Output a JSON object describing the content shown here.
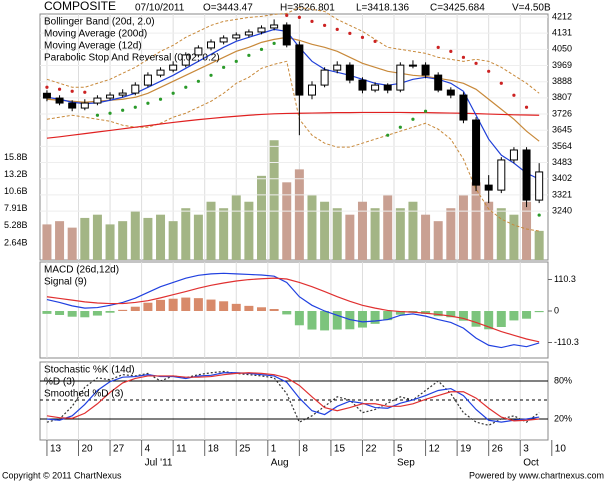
{
  "chart_data": [
    {
      "type": "candlestick",
      "title": "COMPOSITE",
      "header": [
        "07/10/2011",
        "O=3443.47",
        "H=3526.801",
        "L=3418.136",
        "C=3425.684",
        "V=4.50B"
      ],
      "x": [
        0,
        2,
        4,
        6,
        8,
        10,
        12,
        14,
        16,
        18,
        20,
        22,
        24,
        26,
        28,
        30,
        32,
        34,
        36,
        38,
        40,
        42,
        44,
        46,
        48,
        50,
        52,
        54,
        56,
        58,
        60,
        62,
        64,
        66,
        68,
        70,
        72,
        74,
        76,
        78
      ],
      "open": [
        3830,
        3806,
        3781,
        3756,
        3781,
        3806,
        3821,
        3831,
        3871,
        3921,
        3946,
        3971,
        4022,
        4057,
        4087,
        4107,
        4122,
        4137,
        4157,
        4172,
        4072,
        3821,
        3871,
        3946,
        3971,
        3896,
        3846,
        3871,
        3846,
        3971,
        3971,
        3921,
        3846,
        3821,
        3696,
        3370,
        3345,
        3496,
        3546,
        3295
      ],
      "high": [
        3845,
        3820,
        3795,
        3800,
        3820,
        3835,
        3850,
        3885,
        3935,
        3960,
        3990,
        4035,
        4070,
        4100,
        4120,
        4135,
        4150,
        4170,
        4200,
        4185,
        4090,
        3890,
        3960,
        3990,
        3985,
        3910,
        3885,
        3880,
        3985,
        3995,
        3985,
        3935,
        3860,
        3835,
        3710,
        3420,
        3510,
        3560,
        3560,
        3480
      ],
      "low": [
        3790,
        3770,
        3740,
        3745,
        3770,
        3795,
        3810,
        3820,
        3860,
        3910,
        3935,
        3960,
        4010,
        4045,
        4075,
        4095,
        4110,
        4125,
        4145,
        4060,
        3620,
        3800,
        3860,
        3930,
        3880,
        3830,
        3835,
        3830,
        3835,
        3955,
        3905,
        3835,
        3805,
        3680,
        3340,
        3280,
        3330,
        3480,
        3260,
        3280
      ],
      "close": [
        3806,
        3781,
        3756,
        3781,
        3806,
        3821,
        3831,
        3871,
        3921,
        3946,
        3971,
        4022,
        4057,
        4087,
        4107,
        4122,
        4137,
        4157,
        4172,
        4072,
        3821,
        3871,
        3946,
        3971,
        3896,
        3846,
        3871,
        3846,
        3971,
        3971,
        3921,
        3846,
        3821,
        3696,
        3370,
        3345,
        3496,
        3546,
        3295,
        3436
      ],
      "up_color": "#ffffff",
      "down_color": "#000000",
      "bollinger": {
        "name": "Bollinger Band (20d, 2.0)",
        "color": "#c8893a",
        "upper": [
          3900,
          3880,
          3860,
          3860,
          3880,
          3900,
          3930,
          3960,
          4000,
          4040,
          4070,
          4110,
          4140,
          4170,
          4190,
          4200,
          4210,
          4215,
          4225,
          4230,
          4260,
          4250,
          4240,
          4200,
          4170,
          4140,
          4100,
          4060,
          4050,
          4040,
          4030,
          4010,
          4000,
          3990,
          4000,
          3990,
          3960,
          3920,
          3880,
          3830
        ],
        "middle": [
          3800,
          3795,
          3790,
          3785,
          3790,
          3795,
          3800,
          3810,
          3830,
          3860,
          3890,
          3920,
          3950,
          3980,
          4010,
          4040,
          4060,
          4085,
          4100,
          4110,
          4095,
          4075,
          4060,
          4040,
          4010,
          3980,
          3960,
          3940,
          3930,
          3920,
          3915,
          3905,
          3895,
          3880,
          3850,
          3800,
          3750,
          3700,
          3640,
          3590
        ],
        "lower": [
          3700,
          3710,
          3720,
          3710,
          3700,
          3690,
          3670,
          3660,
          3660,
          3680,
          3710,
          3730,
          3760,
          3790,
          3830,
          3880,
          3910,
          3955,
          3975,
          3990,
          3700,
          3620,
          3580,
          3560,
          3560,
          3580,
          3600,
          3620,
          3640,
          3660,
          3680,
          3650,
          3600,
          3500,
          3350,
          3250,
          3200,
          3170,
          3150,
          3140
        ]
      },
      "series": [
        {
          "name": "Moving Average (200d)",
          "color": "#e02020",
          "values": [
            3605,
            3612,
            3620,
            3628,
            3636,
            3644,
            3652,
            3660,
            3668,
            3676,
            3684,
            3691,
            3698,
            3704,
            3710,
            3715,
            3720,
            3724,
            3727,
            3729,
            3730,
            3731,
            3732,
            3733,
            3733,
            3734,
            3734,
            3734,
            3734,
            3733,
            3733,
            3732,
            3731,
            3730,
            3728,
            3726,
            3724,
            3722,
            3721,
            3720
          ]
        },
        {
          "name": "Moving Average (12d)",
          "color": "#1f3fd8",
          "values": [
            3810,
            3800,
            3785,
            3778,
            3782,
            3795,
            3810,
            3830,
            3860,
            3890,
            3920,
            3955,
            3990,
            4025,
            4060,
            4090,
            4110,
            4130,
            4150,
            4140,
            4060,
            3990,
            3950,
            3935,
            3920,
            3900,
            3880,
            3870,
            3880,
            3900,
            3910,
            3900,
            3880,
            3840,
            3720,
            3600,
            3520,
            3480,
            3430,
            3400
          ]
        }
      ],
      "sar": {
        "name": "Parabolic Stop And Reversal (0.02, 0.2)",
        "color": "#2a9a2a",
        "above_color": "#cc2222",
        "values": [
          3860,
          3850,
          3840,
          3835,
          3720,
          3730,
          3745,
          3760,
          3780,
          3800,
          3830,
          3860,
          3890,
          3920,
          3960,
          3990,
          4020,
          4050,
          4080,
          4220,
          4210,
          4190,
          4170,
          4150,
          4130,
          4110,
          4090,
          3620,
          3660,
          3700,
          3740,
          4060,
          4040,
          4010,
          3980,
          3940,
          3880,
          3820,
          3760,
          3220
        ]
      },
      "xlim": [
        -1.1,
        79.4
      ],
      "xticks": [
        {
          "value": 0,
          "label": "13"
        },
        {
          "value": 5,
          "label": "20"
        },
        {
          "value": 10,
          "label": "27"
        },
        {
          "value": 15,
          "label": "4"
        },
        {
          "value": 20,
          "label": "11"
        },
        {
          "value": 25,
          "label": "18"
        },
        {
          "value": 30,
          "label": "25"
        },
        {
          "value": 35,
          "label": "1"
        },
        {
          "value": 40,
          "label": "8"
        },
        {
          "value": 45,
          "label": "15"
        },
        {
          "value": 50,
          "label": "22"
        },
        {
          "value": 55,
          "label": "5"
        },
        {
          "value": 60,
          "label": "12"
        },
        {
          "value": 65,
          "label": "19"
        },
        {
          "value": 70,
          "label": "26"
        },
        {
          "value": 75,
          "label": "3"
        },
        {
          "value": 80,
          "label": "10"
        }
      ],
      "xmonths": [
        {
          "value": 15,
          "label": "Jul '11"
        },
        {
          "value": 35,
          "label": "Aug"
        },
        {
          "value": 55,
          "label": "Sep"
        },
        {
          "value": 75,
          "label": "Oct"
        }
      ],
      "ylim": [
        2995,
        4227
      ],
      "yticks": [
        4212,
        4131,
        4050,
        3969,
        3888,
        3807,
        3726,
        3645,
        3564,
        3483,
        3402,
        3321,
        3240
      ],
      "grid": true
    },
    {
      "type": "volume",
      "values": [
        5.5,
        6,
        5,
        6.5,
        7,
        5.5,
        6,
        7.5,
        6.5,
        7,
        6,
        8,
        7,
        9,
        8,
        10,
        9,
        13,
        18.5,
        12,
        14,
        10,
        9,
        8,
        7,
        9,
        8,
        10,
        8,
        9,
        7,
        6,
        8,
        10,
        12,
        9,
        8,
        7,
        9,
        4.5
      ],
      "up_color": "#a3b585",
      "down_color": "#c9a092",
      "ylim": [
        0,
        38
      ],
      "yticks": [
        {
          "value": 15.8,
          "label": "15.8B"
        },
        {
          "value": 13.2,
          "label": "13.2B"
        },
        {
          "value": 10.6,
          "label": "10.6B"
        },
        {
          "value": 7.91,
          "label": "7.91B"
        },
        {
          "value": 5.28,
          "label": "5.28B"
        },
        {
          "value": 2.64,
          "label": "2.64B"
        }
      ]
    },
    {
      "type": "macd",
      "series": [
        {
          "name": "MACD (26d,12d)",
          "color": "#2040e0",
          "values": [
            40,
            30,
            18,
            10,
            12,
            20,
            30,
            45,
            65,
            85,
            100,
            115,
            125,
            130,
            132,
            130,
            128,
            126,
            122,
            100,
            50,
            20,
            0,
            -15,
            -30,
            -38,
            -35,
            -30,
            -15,
            -10,
            -18,
            -30,
            -40,
            -60,
            -95,
            -120,
            -128,
            -118,
            -125,
            -112
          ]
        },
        {
          "name": "Signal (9)",
          "color": "#e03030",
          "values": [
            50,
            44,
            38,
            32,
            28,
            26,
            26,
            30,
            36,
            46,
            57,
            68,
            80,
            90,
            98,
            105,
            110,
            113,
            115,
            112,
            100,
            85,
            68,
            50,
            34,
            20,
            10,
            2,
            -2,
            -4,
            -8,
            -12,
            -18,
            -26,
            -40,
            -56,
            -72,
            -85,
            -98,
            -108
          ]
        }
      ],
      "histogram": [
        -10,
        -14,
        -20,
        -22,
        -16,
        -6,
        4,
        15,
        29,
        39,
        43,
        47,
        45,
        40,
        34,
        25,
        18,
        13,
        7,
        -12,
        -50,
        -65,
        -68,
        -65,
        -64,
        -58,
        -45,
        -32,
        -13,
        -6,
        -10,
        -18,
        -22,
        -34,
        -55,
        -64,
        -56,
        -33,
        -27,
        -4
      ],
      "pos_color": "#d88a6a",
      "neg_color": "#7cc47c",
      "ylim": [
        -164.6,
        171.6
      ],
      "yticks": [
        110.3,
        0,
        -110.3
      ]
    },
    {
      "type": "stochastic",
      "series": [
        {
          "name": "Stochastic %K (14d)",
          "color": "#333333",
          "values": [
            15,
            20,
            40,
            70,
            85,
            82,
            90,
            88,
            92,
            80,
            88,
            85,
            90,
            93,
            95,
            92,
            90,
            88,
            85,
            60,
            15,
            25,
            40,
            55,
            50,
            30,
            35,
            45,
            55,
            50,
            65,
            80,
            60,
            30,
            15,
            10,
            20,
            25,
            15,
            30
          ]
        },
        {
          "name": "%D (3)",
          "color": "#2040e0",
          "values": [
            20,
            18,
            25,
            43,
            65,
            79,
            86,
            87,
            90,
            87,
            87,
            84,
            88,
            89,
            93,
            93,
            92,
            90,
            88,
            78,
            53,
            33,
            27,
            40,
            48,
            45,
            38,
            37,
            45,
            50,
            57,
            65,
            68,
            57,
            35,
            18,
            15,
            18,
            20,
            23
          ]
        },
        {
          "name": "Smoothed %D (3)",
          "color": "#e03030",
          "values": [
            25,
            22,
            21,
            29,
            44,
            62,
            77,
            84,
            88,
            88,
            88,
            86,
            86,
            87,
            90,
            92,
            93,
            92,
            90,
            85,
            73,
            55,
            38,
            33,
            38,
            44,
            44,
            40,
            40,
            44,
            51,
            57,
            63,
            63,
            53,
            37,
            23,
            17,
            18,
            20
          ]
        }
      ],
      "ylim": [
        -13.2,
        110
      ],
      "yticks": [
        {
          "value": 80,
          "label": "80%"
        },
        {
          "value": 20,
          "label": "20%"
        }
      ],
      "dashed_line": 50
    }
  ],
  "footer": {
    "left": "Copyright © 2011 ChartNexus",
    "right": "Powered by www.chartnexus.com"
  }
}
